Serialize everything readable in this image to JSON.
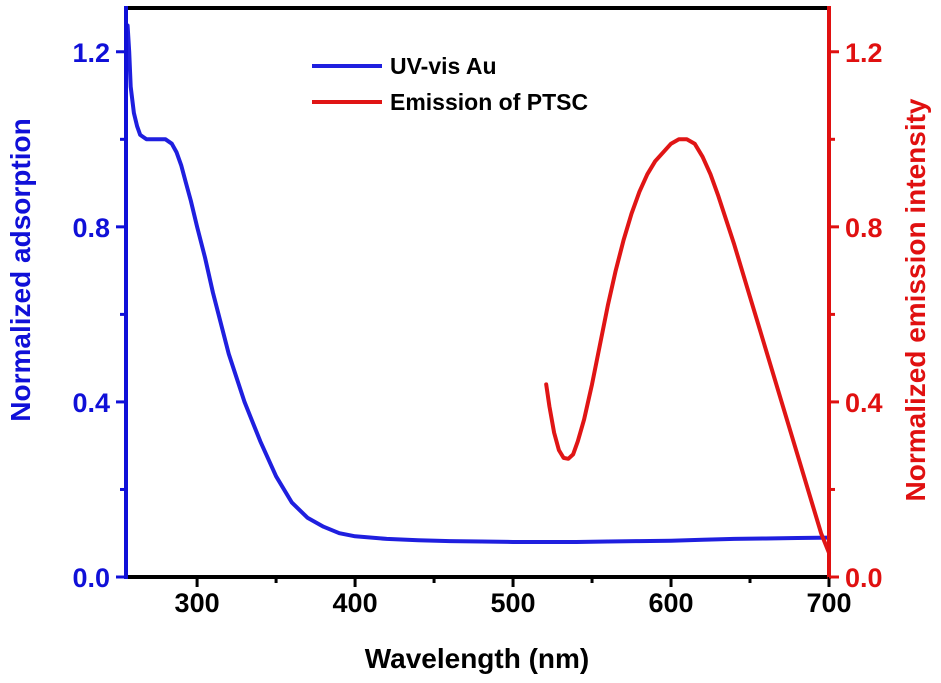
{
  "chart_data": {
    "type": "line",
    "xlabel": "Wavelength (nm)",
    "ylabel_left": "Normalized adsorption",
    "ylabel_right": "Normalized emission intensity",
    "xlim": [
      255,
      700
    ],
    "ylim_left": [
      0,
      1.3
    ],
    "ylim_right": [
      0,
      1.3
    ],
    "x_ticks": [
      {
        "value": 300,
        "label": "300"
      },
      {
        "value": 400,
        "label": "400"
      },
      {
        "value": 500,
        "label": "500"
      },
      {
        "value": 600,
        "label": "600"
      },
      {
        "value": 700,
        "label": "700"
      }
    ],
    "x_minor_ticks": [
      350,
      450,
      550,
      650
    ],
    "y_ticks_left": [
      {
        "value": 0,
        "label": "0.0"
      },
      {
        "value": 0.4,
        "label": "0.4"
      },
      {
        "value": 0.8,
        "label": "0.8"
      },
      {
        "value": 1.2,
        "label": "1.2"
      }
    ],
    "y_minor_ticks_left": [
      0.2,
      0.6,
      1.0
    ],
    "y_ticks_right": [
      {
        "value": 0,
        "label": "0.0"
      },
      {
        "value": 0.4,
        "label": "0.4"
      },
      {
        "value": 0.8,
        "label": "0.8"
      },
      {
        "value": 1.2,
        "label": "1.2"
      }
    ],
    "y_minor_ticks_right": [
      0.2,
      0.6,
      1.0
    ],
    "grid": false,
    "legend_position": "top-center",
    "colors": {
      "left_axis": "#1010d8",
      "right_axis": "#e01010",
      "frame": "#000000"
    },
    "series": [
      {
        "name": "UV-vis Au",
        "axis": "left",
        "color": "#1f1fdf",
        "x": [
          255,
          256,
          257,
          258,
          260,
          262,
          264,
          266,
          268,
          270,
          273,
          276,
          280,
          284,
          287,
          290,
          293,
          296,
          300,
          305,
          310,
          315,
          320,
          330,
          340,
          350,
          360,
          370,
          380,
          390,
          400,
          420,
          440,
          460,
          480,
          500,
          520,
          540,
          560,
          580,
          600,
          620,
          640,
          660,
          680,
          700
        ],
        "y": [
          1.2,
          1.26,
          1.2,
          1.12,
          1.06,
          1.03,
          1.01,
          1.005,
          1.0,
          1.0,
          1.0,
          1.0,
          1.0,
          0.99,
          0.97,
          0.94,
          0.9,
          0.86,
          0.8,
          0.73,
          0.65,
          0.58,
          0.51,
          0.4,
          0.31,
          0.23,
          0.17,
          0.135,
          0.115,
          0.1,
          0.093,
          0.087,
          0.084,
          0.082,
          0.081,
          0.08,
          0.08,
          0.08,
          0.081,
          0.082,
          0.083,
          0.085,
          0.087,
          0.088,
          0.089,
          0.09
        ]
      },
      {
        "name": "Emission of PTSC",
        "axis": "right",
        "color": "#e01515",
        "x": [
          521,
          523,
          526,
          529,
          532,
          535,
          538,
          541,
          545,
          550,
          555,
          560,
          565,
          570,
          575,
          580,
          585,
          590,
          595,
          600,
          605,
          610,
          615,
          620,
          625,
          630,
          640,
          650,
          660,
          670,
          680,
          690,
          695,
          700
        ],
        "y": [
          0.44,
          0.39,
          0.33,
          0.29,
          0.272,
          0.27,
          0.28,
          0.31,
          0.36,
          0.44,
          0.53,
          0.62,
          0.7,
          0.77,
          0.83,
          0.88,
          0.92,
          0.95,
          0.97,
          0.99,
          1.0,
          1.0,
          0.99,
          0.96,
          0.92,
          0.87,
          0.76,
          0.64,
          0.52,
          0.4,
          0.28,
          0.16,
          0.1,
          0.055
        ]
      }
    ]
  }
}
